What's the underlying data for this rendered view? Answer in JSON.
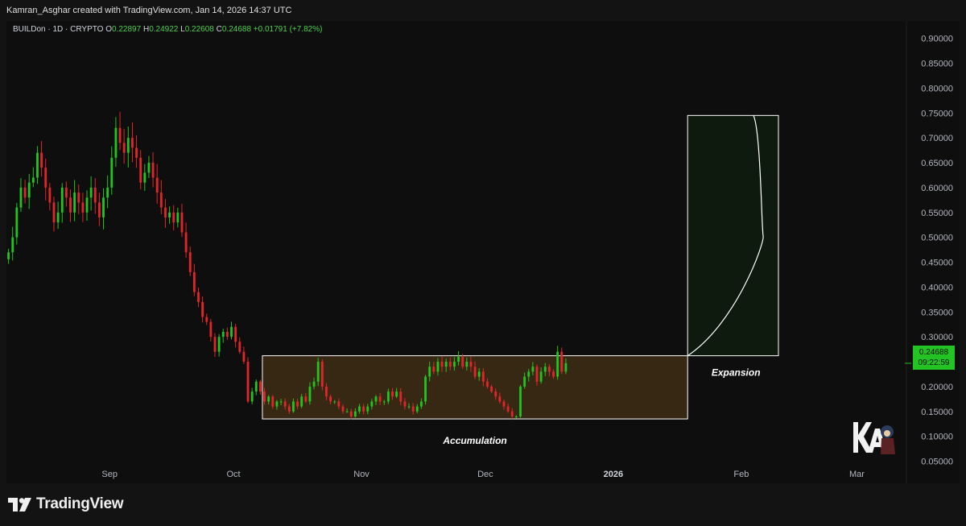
{
  "header": {
    "credit": "Kamran_Asghar created with TradingView.com, Jan 14, 2026 14:37 UTC"
  },
  "legend": {
    "symbol": "BUILDon · 1D · CRYPTO",
    "o_label": "O",
    "o": "0.22897",
    "h_label": "H",
    "h": "0.24922",
    "l_label": "L",
    "l": "0.22608",
    "c_label": "C",
    "c": "0.24688",
    "change": "+0.01791 (+7.82%)"
  },
  "price_tag": {
    "price": "0.24688",
    "countdown": "09:22:59"
  },
  "footer": {
    "brand": "TradingView"
  },
  "colors": {
    "up": "#22c322",
    "down": "#e0262d",
    "accumulation_fill": "#3a2a14",
    "expansion_fill": "#0e1a0e",
    "price_tag": "#22c322"
  },
  "chart_data": {
    "type": "candlestick",
    "symbol": "BUILDon",
    "timeframe": "1D",
    "x_axis_ticks": [
      "Sep",
      "Oct",
      "Nov",
      "Dec",
      "2026",
      "Feb",
      "Mar"
    ],
    "y_axis_ticks": [
      "0.90000",
      "0.85000",
      "0.80000",
      "0.75000",
      "0.70000",
      "0.65000",
      "0.60000",
      "0.55000",
      "0.50000",
      "0.45000",
      "0.40000",
      "0.35000",
      "0.30000",
      "0.25000",
      "0.20000",
      "0.15000",
      "0.10000",
      "0.05000"
    ],
    "ylim": [
      0.025,
      0.935
    ],
    "xlim": [
      "2025-08-07",
      "2026-03-13"
    ],
    "last_close": 0.24688,
    "closes": [
      0.47,
      0.5,
      0.56,
      0.6,
      0.58,
      0.61,
      0.62,
      0.67,
      0.64,
      0.6,
      0.57,
      0.53,
      0.55,
      0.6,
      0.58,
      0.55,
      0.59,
      0.57,
      0.55,
      0.58,
      0.6,
      0.57,
      0.54,
      0.58,
      0.6,
      0.66,
      0.72,
      0.69,
      0.67,
      0.7,
      0.68,
      0.66,
      0.61,
      0.63,
      0.65,
      0.62,
      0.59,
      0.56,
      0.54,
      0.55,
      0.53,
      0.55,
      0.51,
      0.47,
      0.43,
      0.39,
      0.37,
      0.34,
      0.33,
      0.3,
      0.27,
      0.3,
      0.31,
      0.3,
      0.32,
      0.29,
      0.27,
      0.25,
      0.17,
      0.19,
      0.21,
      0.19,
      0.17,
      0.18,
      0.16,
      0.17,
      0.17,
      0.16,
      0.15,
      0.17,
      0.16,
      0.18,
      0.17,
      0.2,
      0.21,
      0.25,
      0.2,
      0.18,
      0.17,
      0.17,
      0.16,
      0.15,
      0.15,
      0.14,
      0.15,
      0.16,
      0.15,
      0.16,
      0.17,
      0.18,
      0.17,
      0.17,
      0.19,
      0.18,
      0.19,
      0.17,
      0.16,
      0.16,
      0.15,
      0.16,
      0.17,
      0.22,
      0.24,
      0.23,
      0.25,
      0.24,
      0.25,
      0.24,
      0.25,
      0.26,
      0.24,
      0.25,
      0.24,
      0.22,
      0.23,
      0.21,
      0.2,
      0.19,
      0.18,
      0.17,
      0.16,
      0.15,
      0.14,
      0.14,
      0.2,
      0.22,
      0.23,
      0.24,
      0.21,
      0.23,
      0.24,
      0.23,
      0.22,
      0.27,
      0.23,
      0.24688
    ],
    "boxes": [
      {
        "label": "Accumulation",
        "x_start": "2025-10-08",
        "x_end": "2026-01-19",
        "y_low": 0.135,
        "y_high": 0.262
      },
      {
        "label": "Expansion",
        "x_start": "2026-01-19",
        "x_end": "2026-02-10",
        "y_low": 0.262,
        "y_high": 0.745
      }
    ],
    "grid": false
  }
}
